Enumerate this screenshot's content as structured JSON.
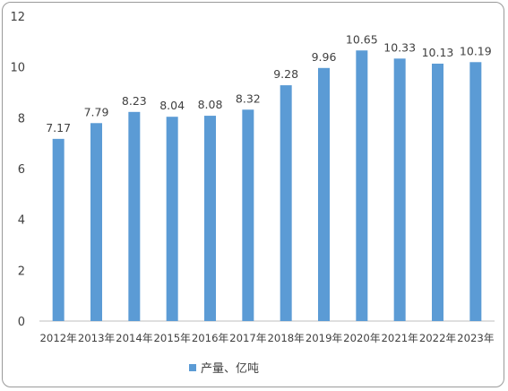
{
  "colors": {
    "bar": "#5b9bd5",
    "axis": "#bfbfbf",
    "text": "#404040"
  },
  "chart_data": {
    "type": "bar",
    "categories": [
      "2012年",
      "2013年",
      "2014年",
      "2015年",
      "2016年",
      "2017年",
      "2018年",
      "2019年",
      "2020年",
      "2021年",
      "2022年",
      "2023年"
    ],
    "series": [
      {
        "name": "产量、亿吨",
        "values": [
          7.17,
          7.79,
          8.23,
          8.04,
          8.08,
          8.32,
          9.28,
          9.96,
          10.65,
          10.33,
          10.13,
          10.19
        ]
      }
    ],
    "data_labels": [
      "7.17",
      "7.79",
      "8.23",
      "8.04",
      "8.08",
      "8.32",
      "9.28",
      "9.96",
      "10.65",
      "10.33",
      "10.13",
      "10.19"
    ],
    "yticks": [
      "0",
      "2",
      "4",
      "6",
      "8",
      "10",
      "12"
    ],
    "ylim": [
      0,
      12
    ],
    "grid": false,
    "legend_position": "bottom"
  }
}
